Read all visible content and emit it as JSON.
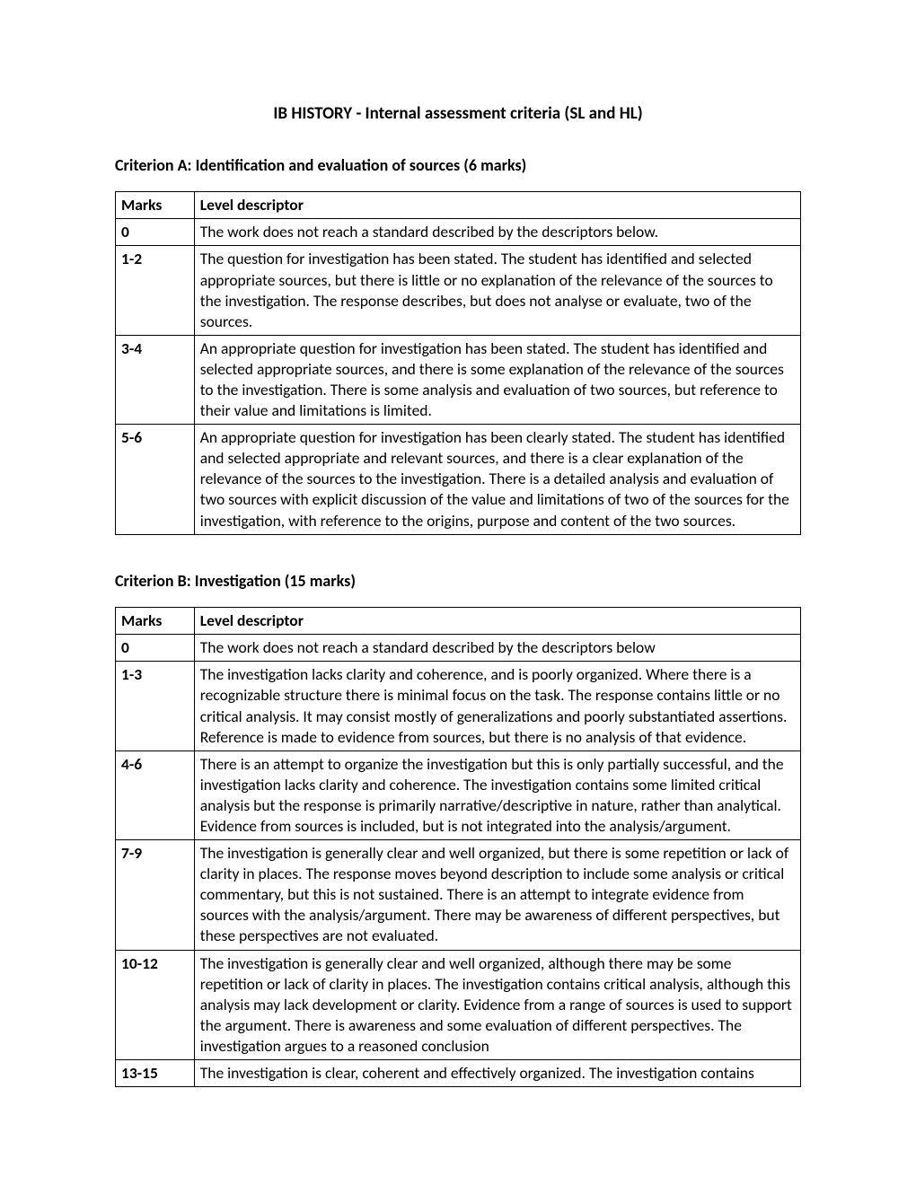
{
  "page_title": "IB HISTORY - Internal assessment criteria (SL and HL)",
  "criterion_a": {
    "heading": "Criterion A: Identification and evaluation of sources (6 marks)",
    "columns": [
      "Marks",
      "Level descriptor"
    ],
    "rows": [
      [
        "0",
        "The work does not reach a standard described by the descriptors below."
      ],
      [
        "1-2",
        "The question for investigation has been stated. The student has identified and selected appropriate sources, but there is little or no explanation of the relevance of the sources to the investigation. The response describes, but does not analyse or evaluate, two of the sources."
      ],
      [
        "3-4",
        "An appropriate question for investigation has been stated. The student has identified and selected appropriate sources, and there is some explanation of the relevance of the sources to the investigation. There is some analysis and evaluation of two sources, but reference to their value and limitations is limited."
      ],
      [
        "5-6",
        "An appropriate question for investigation has been clearly stated. The student has identified and selected appropriate and relevant sources, and there is a clear explanation of the relevance of the sources to the investigation. There is a detailed analysis and evaluation of two sources with explicit discussion of the value and limitations of two of the sources for the investigation, with reference to the origins, purpose and content of the two sources."
      ]
    ]
  },
  "criterion_b": {
    "heading": "Criterion B: Investigation (15 marks)",
    "columns": [
      "Marks",
      "Level descriptor"
    ],
    "rows": [
      [
        "0",
        "The work does not reach a standard described by the descriptors below"
      ],
      [
        "1-3",
        "The investigation lacks clarity and coherence, and is poorly organized. Where there is a recognizable structure there is minimal focus on the task. The response contains little or no critical analysis. It may consist mostly of generalizations and poorly substantiated assertions. Reference is made to evidence from sources, but there is no analysis of that evidence."
      ],
      [
        "4-6",
        "There is an attempt to organize the investigation but this is only partially successful, and the investigation lacks clarity and coherence. The investigation contains some limited critical analysis but the response is primarily narrative/descriptive in nature, rather than analytical. Evidence from sources is included, but is not integrated into the analysis/argument."
      ],
      [
        "7-9",
        "The investigation is generally clear and well organized, but there is some repetition or lack of clarity in places. The response moves beyond description to include some analysis or critical commentary, but this is not sustained. There is an attempt to integrate evidence from sources with the analysis/argument. There may be awareness of different perspectives, but these perspectives are not evaluated."
      ],
      [
        "10-12",
        "The investigation is generally clear and well organized, although there may be some repetition or lack of clarity in places. The investigation contains critical analysis, although this analysis may lack development or clarity. Evidence from a range of sources is used to support the argument. There is awareness and some evaluation of different perspectives. The investigation argues to a reasoned conclusion"
      ],
      [
        "13-15",
        "The investigation is clear, coherent and effectively organized. The investigation contains"
      ]
    ]
  }
}
